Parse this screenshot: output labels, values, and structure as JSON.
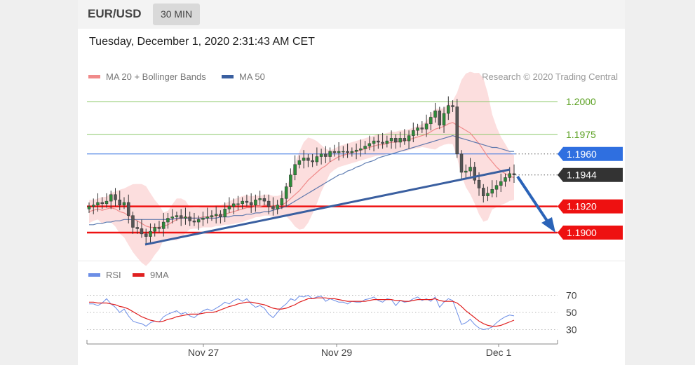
{
  "header": {
    "pair": "EUR/USD",
    "timeframe": "30 MIN",
    "timestamp": "Tuesday, December 1, 2020 2:31:43 AM CET"
  },
  "legend": {
    "ma20_label": "MA 20 + Bollinger Bands",
    "ma50_label": "MA 50",
    "rsi_label": "RSI",
    "ma9_label": "9MA",
    "research": "Research © 2020 Trading Central"
  },
  "colors": {
    "ma20": "#f08a8a",
    "ma50": "#3a5fa0",
    "rsi": "#6c8ee6",
    "ma9": "#e02020",
    "resistance_green": "#8cc86a",
    "pivot_blue": "#2f6fe0",
    "support_red": "#ee1111",
    "current_dark": "#333333"
  },
  "chart_data": [
    {
      "type": "line",
      "name": "price",
      "x_ticks": [
        "Nov 27",
        "Nov 29",
        "Dec 1"
      ],
      "ylim": [
        1.188,
        1.2005
      ],
      "levels": [
        {
          "value": 1.2,
          "label": "1.2000",
          "kind": "resistance"
        },
        {
          "value": 1.1975,
          "label": "1.1975",
          "kind": "resistance"
        },
        {
          "value": 1.196,
          "label": "1.1960",
          "kind": "pivot"
        },
        {
          "value": 1.1944,
          "label": "1.1944",
          "kind": "current"
        },
        {
          "value": 1.192,
          "label": "1.1920",
          "kind": "support"
        },
        {
          "value": 1.19,
          "label": "1.1900",
          "kind": "support"
        }
      ],
      "close": [
        1.192,
        1.1921,
        1.1923,
        1.1922,
        1.1924,
        1.1929,
        1.1925,
        1.1921,
        1.1923,
        1.1913,
        1.1904,
        1.1903,
        1.1899,
        1.1897,
        1.1901,
        1.1904,
        1.1903,
        1.1908,
        1.1911,
        1.1912,
        1.1913,
        1.1911,
        1.1912,
        1.1909,
        1.1908,
        1.191,
        1.1911,
        1.1912,
        1.1913,
        1.1914,
        1.1912,
        1.1918,
        1.192,
        1.1922,
        1.1922,
        1.1924,
        1.1923,
        1.1921,
        1.1925,
        1.1926,
        1.1924,
        1.192,
        1.1918,
        1.1921,
        1.1926,
        1.1935,
        1.1944,
        1.1952,
        1.1955,
        1.1957,
        1.1955,
        1.1954,
        1.1958,
        1.196,
        1.1958,
        1.1962,
        1.1961,
        1.1962,
        1.1962,
        1.1961,
        1.1962,
        1.1963,
        1.1964,
        1.1966,
        1.1968,
        1.197,
        1.1969,
        1.1968,
        1.197,
        1.1972,
        1.1969,
        1.1972,
        1.197,
        1.1974,
        1.1978,
        1.198,
        1.1979,
        1.1983,
        1.1988,
        1.1993,
        1.1982,
        1.1991,
        1.1997,
        1.1996,
        1.196,
        1.1946,
        1.1947,
        1.195,
        1.194,
        1.1934,
        1.1928,
        1.193,
        1.1933,
        1.1936,
        1.1939,
        1.1942,
        1.1945,
        1.1944
      ],
      "ma20": [
        1.1916,
        1.1917,
        1.1918,
        1.1917,
        1.1918,
        1.1919,
        1.1918,
        1.1916,
        1.1915,
        1.1913,
        1.1911,
        1.1909,
        1.1907,
        1.1905,
        1.1904,
        1.1904,
        1.1904,
        1.1905,
        1.1906,
        1.1908,
        1.191,
        1.1911,
        1.1912,
        1.1911,
        1.1911,
        1.1911,
        1.1912,
        1.1912,
        1.1912,
        1.1913,
        1.1913,
        1.1914,
        1.1915,
        1.1916,
        1.1917,
        1.1918,
        1.1919,
        1.1919,
        1.192,
        1.192,
        1.1921,
        1.1921,
        1.192,
        1.192,
        1.1921,
        1.1923,
        1.1926,
        1.1929,
        1.1932,
        1.1936,
        1.194,
        1.1943,
        1.1946,
        1.1949,
        1.1951,
        1.1954,
        1.1956,
        1.1958,
        1.1959,
        1.196,
        1.1961,
        1.1962,
        1.1963,
        1.1964,
        1.1965,
        1.1966,
        1.1967,
        1.1967,
        1.1968,
        1.1969,
        1.1969,
        1.197,
        1.197,
        1.1971,
        1.1972,
        1.1973,
        1.1974,
        1.1975,
        1.1977,
        1.1979,
        1.198,
        1.1981,
        1.1983,
        1.1984,
        1.1982,
        1.198,
        1.1978,
        1.1976,
        1.1972,
        1.1968,
        1.1963,
        1.1958,
        1.1954,
        1.195,
        1.1947,
        1.1945,
        1.1943,
        1.1942
      ],
      "ma50": [
        1.1906,
        1.1906,
        1.1907,
        1.1907,
        1.1908,
        1.1908,
        1.1909,
        1.1909,
        1.191,
        1.191,
        1.191,
        1.191,
        1.191,
        1.191,
        1.191,
        1.191,
        1.191,
        1.191,
        1.191,
        1.191,
        1.1911,
        1.1911,
        1.1911,
        1.1911,
        1.1911,
        1.1911,
        1.1911,
        1.1911,
        1.1911,
        1.1911,
        1.1912,
        1.1912,
        1.1912,
        1.1913,
        1.1913,
        1.1913,
        1.1914,
        1.1914,
        1.1915,
        1.1915,
        1.1916,
        1.1916,
        1.1917,
        1.1918,
        1.1919,
        1.192,
        1.1922,
        1.1924,
        1.1926,
        1.1928,
        1.193,
        1.1932,
        1.1934,
        1.1936,
        1.1938,
        1.194,
        1.1942,
        1.1944,
        1.1945,
        1.1947,
        1.1948,
        1.195,
        1.1951,
        1.1953,
        1.1954,
        1.1955,
        1.1957,
        1.1958,
        1.1959,
        1.196,
        1.1961,
        1.1962,
        1.1963,
        1.1964,
        1.1965,
        1.1966,
        1.1967,
        1.1968,
        1.1969,
        1.197,
        1.1971,
        1.1972,
        1.1973,
        1.1974,
        1.1973,
        1.1972,
        1.1971,
        1.197,
        1.1969,
        1.1968,
        1.1967,
        1.1966,
        1.1965,
        1.1965,
        1.1964,
        1.1963,
        1.1962,
        1.1962
      ]
    },
    {
      "type": "line",
      "name": "oscillator",
      "ylim": [
        25,
        75
      ],
      "y_ticks": [
        "70",
        "50",
        "30"
      ],
      "rsi": [
        60,
        60,
        58,
        61,
        66,
        60,
        56,
        50,
        54,
        46,
        40,
        38,
        37,
        34,
        38,
        40,
        39,
        45,
        48,
        50,
        52,
        48,
        50,
        46,
        44,
        48,
        52,
        54,
        52,
        55,
        58,
        62,
        60,
        64,
        66,
        63,
        66,
        60,
        56,
        58,
        55,
        48,
        44,
        50,
        56,
        60,
        66,
        64,
        69,
        68,
        70,
        66,
        68,
        69,
        63,
        66,
        64,
        62,
        62,
        60,
        63,
        62,
        62,
        65,
        66,
        68,
        64,
        62,
        66,
        65,
        58,
        64,
        62,
        63,
        66,
        68,
        64,
        66,
        63,
        68,
        56,
        62,
        66,
        64,
        50,
        36,
        38,
        42,
        36,
        32,
        30,
        31,
        33,
        38,
        42,
        45,
        47,
        46
      ],
      "ma9": [
        62,
        62,
        61,
        61,
        61,
        60,
        59,
        57,
        56,
        54,
        51,
        48,
        45,
        43,
        41,
        40,
        39,
        40,
        42,
        43,
        45,
        46,
        47,
        48,
        48,
        48,
        49,
        50,
        50,
        51,
        53,
        55,
        57,
        58,
        60,
        61,
        62,
        62,
        61,
        60,
        59,
        57,
        55,
        54,
        54,
        55,
        57,
        59,
        62,
        64,
        66,
        66,
        67,
        67,
        67,
        66,
        66,
        65,
        64,
        63,
        63,
        63,
        63,
        63,
        64,
        65,
        65,
        65,
        65,
        65,
        64,
        64,
        63,
        63,
        64,
        65,
        65,
        65,
        65,
        66,
        64,
        63,
        63,
        63,
        61,
        57,
        52,
        48,
        44,
        40,
        37,
        35,
        34,
        34,
        35,
        37,
        39,
        41
      ]
    }
  ]
}
